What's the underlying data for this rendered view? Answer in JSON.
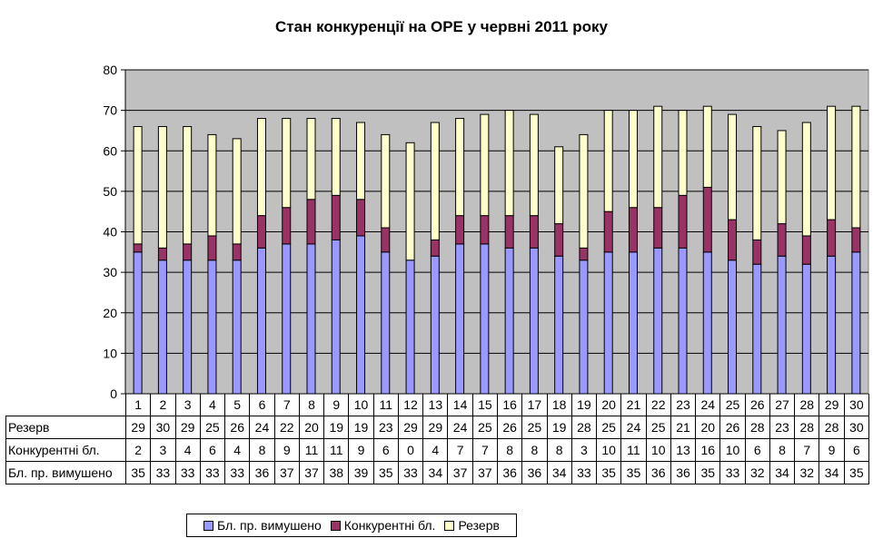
{
  "chart_data": {
    "type": "bar",
    "stacked": true,
    "title": "Стан конкуренції на ОРЕ  у червні 2011 року",
    "categories": [
      "1",
      "2",
      "3",
      "4",
      "5",
      "6",
      "7",
      "8",
      "9",
      "10",
      "11",
      "12",
      "13",
      "14",
      "15",
      "16",
      "17",
      "18",
      "19",
      "20",
      "21",
      "22",
      "23",
      "24",
      "25",
      "26",
      "27",
      "28",
      "29",
      "30"
    ],
    "ylim": [
      0,
      80
    ],
    "yticks": [
      0,
      10,
      20,
      30,
      40,
      50,
      60,
      70,
      80
    ],
    "grid": true,
    "legend_position": "bottom",
    "plot_background": "#c0c0c0",
    "series": [
      {
        "name": "Бл. пр. вимушено",
        "color": "#9999ff",
        "values": [
          35,
          33,
          33,
          33,
          33,
          36,
          37,
          37,
          38,
          39,
          35,
          33,
          34,
          37,
          37,
          36,
          36,
          34,
          33,
          35,
          35,
          36,
          36,
          35,
          33,
          32,
          34,
          32,
          34,
          35
        ]
      },
      {
        "name": "Конкурентні бл.",
        "color": "#993366",
        "values": [
          2,
          3,
          4,
          6,
          4,
          8,
          9,
          11,
          11,
          9,
          6,
          0,
          4,
          7,
          7,
          8,
          8,
          8,
          3,
          10,
          11,
          10,
          13,
          16,
          10,
          6,
          8,
          7,
          9,
          6
        ]
      },
      {
        "name": "Резерв",
        "color": "#ffffcc",
        "values": [
          29,
          30,
          29,
          25,
          26,
          24,
          22,
          20,
          19,
          19,
          23,
          29,
          29,
          24,
          25,
          26,
          25,
          19,
          28,
          25,
          24,
          25,
          21,
          20,
          26,
          28,
          23,
          28,
          28,
          30
        ]
      }
    ],
    "table_rows": [
      "Резерв",
      "Конкурентні бл.",
      "Бл. пр. вимушено"
    ]
  }
}
